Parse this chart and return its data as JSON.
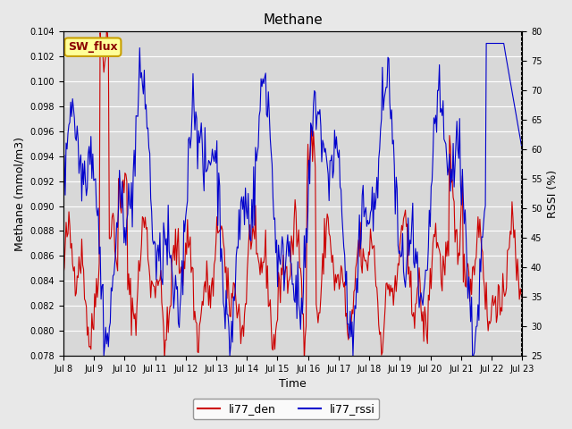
{
  "title": "Methane",
  "ylabel_left": "Methane (mmol/m3)",
  "ylabel_right": "RSSI (%)",
  "xlabel": "Time",
  "ylim_left": [
    0.078,
    0.104
  ],
  "ylim_right": [
    25,
    80
  ],
  "yticks_left": [
    0.078,
    0.08,
    0.082,
    0.084,
    0.086,
    0.088,
    0.09,
    0.092,
    0.094,
    0.096,
    0.098,
    0.1,
    0.102,
    0.104
  ],
  "yticks_right": [
    25,
    30,
    35,
    40,
    45,
    50,
    55,
    60,
    65,
    70,
    75,
    80
  ],
  "xtick_labels": [
    "Jul 8",
    "Jul 9",
    "Jul 10",
    "Jul 11",
    "Jul 12",
    "Jul 13",
    "Jul 14",
    "Jul 15",
    "Jul 16",
    "Jul 17",
    "Jul 18",
    "Jul 19",
    "Jul 20",
    "Jul 21",
    "Jul 22",
    "Jul 23"
  ],
  "background_color": "#e8e8e8",
  "plot_bg_color": "#d8d8d8",
  "grid_color": "#ffffff",
  "line1_color": "#cc0000",
  "line2_color": "#0000cc",
  "legend_labels": [
    "li77_den",
    "li77_rssi"
  ],
  "annotation_text": "SW_flux",
  "annotation_bg": "#ffff99",
  "annotation_border": "#c8a000"
}
